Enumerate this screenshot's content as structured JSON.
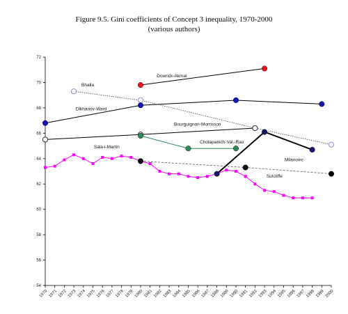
{
  "title": "Figure 9.5. Gini coefficients of Concept 3 inequality, 1970-2000",
  "subtitle": "(various authors)",
  "chart_data": {
    "type": "line",
    "title": "Figure 9.5. Gini coefficients of Concept 3 inequality, 1970-2000",
    "subtitle": "(various authors)",
    "xlabel": "",
    "ylabel": "",
    "ylim": [
      54,
      72
    ],
    "yticks": [
      54,
      56,
      58,
      60,
      62,
      64,
      66,
      68,
      70,
      72
    ],
    "xticks": [
      "1970",
      "1971",
      "1972",
      "1973",
      "1974",
      "1975",
      "1976",
      "1977",
      "1978",
      "1979",
      "1980",
      "1981",
      "1982",
      "1983",
      "1984",
      "1985",
      "1986",
      "1987",
      "1988",
      "1989",
      "1990",
      "1991",
      "1992",
      "1993",
      "1994",
      "1995",
      "1996",
      "1997",
      "1998",
      "1999",
      "2000"
    ],
    "grid": false,
    "legend": "none",
    "series": [
      {
        "name": "Dowrick-Akmal",
        "x": [
          1980,
          1993
        ],
        "y": [
          69.8,
          71.1
        ],
        "color": "#e8141c",
        "marker": "filled-circle",
        "line": "solid",
        "line_color": "#000000",
        "line_width": 1
      },
      {
        "name": "Bhalla",
        "x": [
          1973,
          1980,
          1992,
          2000
        ],
        "y": [
          69.3,
          68.6,
          66.4,
          65.1
        ],
        "color": "#8a8ae6",
        "marker": "open-circle",
        "line": "dotted",
        "line_color": "#444444",
        "line_width": 0.8
      },
      {
        "name": "Dikhanov-Ward",
        "x": [
          1970,
          1980,
          1990,
          1999
        ],
        "y": [
          66.8,
          68.2,
          68.6,
          68.3
        ],
        "color": "#1515b5",
        "marker": "filled-circle",
        "line": "solid",
        "line_color": "#000000",
        "line_width": 1
      },
      {
        "name": "Bourguignon-Morrisson",
        "x": [
          1970,
          1980,
          1992
        ],
        "y": [
          65.5,
          65.9,
          66.4
        ],
        "color": "#333333",
        "marker": "open-circle",
        "line": "solid",
        "line_color": "#000000",
        "line_width": 1
      },
      {
        "name": "Chotapanich-Val.-Rao",
        "x": [
          1980,
          1985,
          1990
        ],
        "y": [
          65.8,
          64.8,
          64.8
        ],
        "color": "#2e8b57",
        "marker": "filled-circle",
        "line": "solid",
        "line_color": "#2e8b57",
        "line_width": 1
      },
      {
        "name": "Sala-i-Martin",
        "x": [
          1970,
          1971,
          1972,
          1973,
          1974,
          1975,
          1976,
          1977,
          1978,
          1979,
          1980,
          1981,
          1982,
          1983,
          1984,
          1985,
          1986,
          1987,
          1988,
          1989,
          1990,
          1991,
          1992,
          1993,
          1994,
          1995,
          1996,
          1997,
          1998
        ],
        "y": [
          63.3,
          63.4,
          63.9,
          64.3,
          64.0,
          63.6,
          64.1,
          64.0,
          64.2,
          64.1,
          63.8,
          63.6,
          63.0,
          62.8,
          62.8,
          62.6,
          62.5,
          62.6,
          62.8,
          63.1,
          63.0,
          62.6,
          62.0,
          61.5,
          61.4,
          61.1,
          60.9,
          60.9,
          60.9
        ],
        "color": "#ff00ff",
        "marker": "square",
        "line": "solid",
        "line_color": "#ff00ff",
        "line_width": 1
      },
      {
        "name": "Milanovic",
        "x": [
          1988,
          1993,
          1998
        ],
        "y": [
          62.8,
          66.1,
          64.7
        ],
        "color": "#15156b",
        "marker": "filled-circle",
        "line": "solid-thick",
        "line_color": "#000000",
        "line_width": 2
      },
      {
        "name": "Sutcliffe",
        "x": [
          1980,
          1991,
          2000
        ],
        "y": [
          63.8,
          63.3,
          62.8
        ],
        "color": "#000000",
        "marker": "filled-circle",
        "line": "dashed",
        "line_color": "#555555",
        "line_width": 0.8
      }
    ],
    "labels": [
      {
        "text": "Dowrick-Akmal",
        "x": 1981.7,
        "y": 70.4
      },
      {
        "text": "Bhalla",
        "x": 1973.8,
        "y": 69.7
      },
      {
        "text": "Dikhanov-Ward",
        "x": 1973.2,
        "y": 67.8
      },
      {
        "text": "Bourguignon-Morrisson",
        "x": 1983.5,
        "y": 66.6
      },
      {
        "text": "Chotapanich-Val.-Rao",
        "x": 1986.2,
        "y": 65.2
      },
      {
        "text": "Sala-i-Martin",
        "x": 1975.1,
        "y": 64.8
      },
      {
        "text": "Milanovic",
        "x": 1995.1,
        "y": 63.8
      },
      {
        "text": "Sutcliffe",
        "x": 1993.2,
        "y": 62.5
      }
    ]
  }
}
